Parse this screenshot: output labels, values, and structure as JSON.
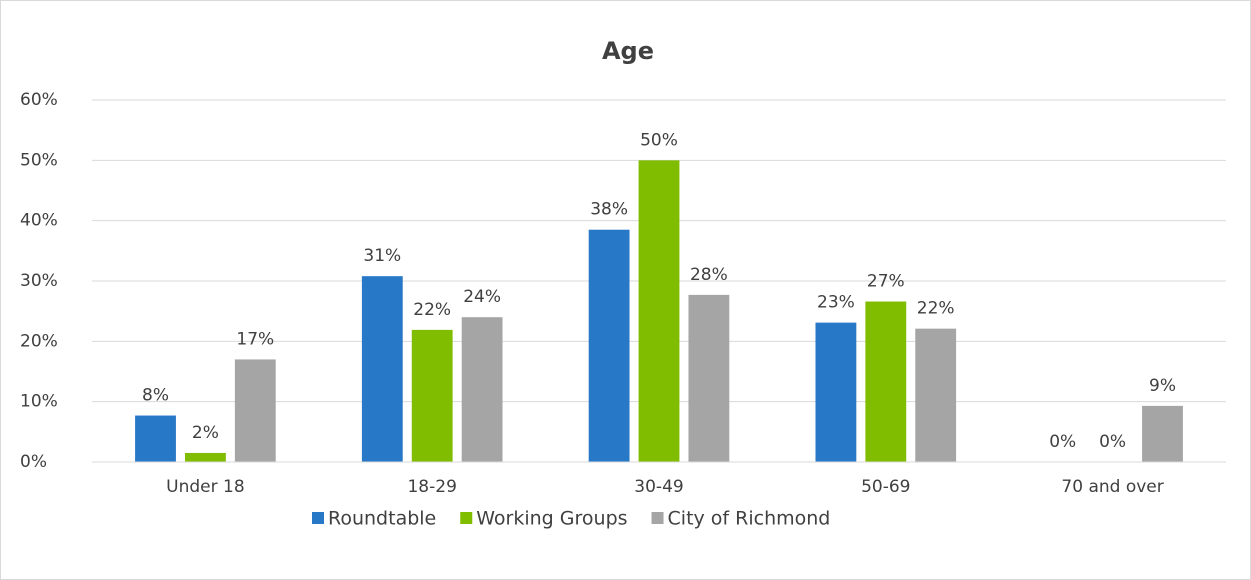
{
  "chart_data": {
    "type": "bar",
    "title": "Age",
    "categories": [
      "Under 18",
      "18-29",
      "30-49",
      "50-69",
      "70 and over"
    ],
    "series": [
      {
        "name": "Roundtable",
        "color": "#2878c8",
        "values": [
          7.7,
          30.8,
          38.5,
          23.1,
          0
        ],
        "value_labels": [
          "8%",
          "31%",
          "38%",
          "23%",
          "0%"
        ]
      },
      {
        "name": "Working Groups",
        "color": "#80bc00",
        "values": [
          1.5,
          21.9,
          50,
          26.6,
          0
        ],
        "value_labels": [
          "2%",
          "22%",
          "50%",
          "27%",
          "0%"
        ]
      },
      {
        "name": "City of Richmond",
        "color": "#a5a5a5",
        "values": [
          17,
          24,
          27.7,
          22.1,
          9.3
        ],
        "value_labels": [
          "17%",
          "24%",
          "28%",
          "22%",
          "9%"
        ]
      }
    ],
    "ylim": [
      0,
      60
    ],
    "yticks": [
      {
        "value": 0,
        "label": "0%"
      },
      {
        "value": 10,
        "label": "10%"
      },
      {
        "value": 20,
        "label": "20%"
      },
      {
        "value": 30,
        "label": "30%"
      },
      {
        "value": 40,
        "label": "40%"
      },
      {
        "value": 50,
        "label": "50%"
      },
      {
        "value": 60,
        "label": "60%"
      }
    ],
    "grid": true,
    "legend": "bottom"
  }
}
